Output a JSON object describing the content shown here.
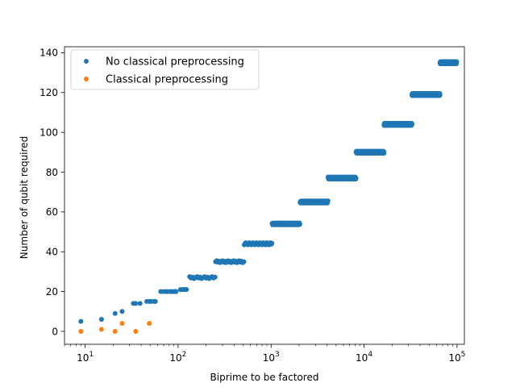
{
  "chart_data": {
    "type": "scatter",
    "title": "",
    "xlabel": "Biprime to be factored",
    "ylabel": "Number of qubit required",
    "xscale": "log",
    "xlim": [
      6,
      120000
    ],
    "ylim": [
      -6.5,
      143
    ],
    "x_ticks": [
      {
        "value": 10,
        "label": "10",
        "exp": "1"
      },
      {
        "value": 100,
        "label": "10",
        "exp": "2"
      },
      {
        "value": 1000,
        "label": "10",
        "exp": "3"
      },
      {
        "value": 10000,
        "label": "10",
        "exp": "4"
      },
      {
        "value": 100000,
        "label": "10",
        "exp": "5"
      }
    ],
    "y_ticks": [
      0,
      20,
      40,
      60,
      80,
      100,
      120,
      140
    ],
    "grid": false,
    "legend_position": "upper-left",
    "series": [
      {
        "name": "No classical preprocessing",
        "color": "#1f77b4",
        "clusters": [
          {
            "x": [
              9
            ],
            "y": 5
          },
          {
            "x": [
              15
            ],
            "y": 6
          },
          {
            "x": [
              21
            ],
            "y": 9
          },
          {
            "x": [
              25
            ],
            "y": 10
          },
          {
            "x": [
              33,
              35,
              39
            ],
            "y": 14
          },
          {
            "x": [
              46,
              49,
              51,
              55,
              57
            ],
            "y": 15
          },
          {
            "x": [
              65,
              69,
              74,
              77,
              82,
              85,
              87,
              91,
              93,
              94,
              95
            ],
            "y": 20
          },
          {
            "x": [
              106,
              111,
              115,
              119,
              121,
              122,
              123
            ],
            "y": 21
          },
          {
            "range": [
              133,
              250
            ],
            "n": 18,
            "y": 27
          },
          {
            "range": [
              253,
              510
            ],
            "n": 26,
            "y": 35
          },
          {
            "range": [
              515,
              1020
            ],
            "n": 40,
            "y": 44
          },
          {
            "range": [
              1025,
              2040
            ],
            "n": 60,
            "y": 54
          },
          {
            "range": [
              2050,
              4090
            ],
            "n": 90,
            "y": 65
          },
          {
            "range": [
              4100,
              8190
            ],
            "n": 120,
            "y": 77
          },
          {
            "range": [
              8200,
              16380
            ],
            "n": 160,
            "y": 90
          },
          {
            "range": [
              16400,
              32760
            ],
            "n": 200,
            "y": 104
          },
          {
            "range": [
              32800,
              65520
            ],
            "n": 240,
            "y": 119
          },
          {
            "range": [
              65600,
              99000
            ],
            "n": 180,
            "y": 135
          }
        ]
      },
      {
        "name": "Classical preprocessing",
        "color": "#ff7f0e",
        "points": [
          {
            "x": 9,
            "y": 0
          },
          {
            "x": 15,
            "y": 1
          },
          {
            "x": 21,
            "y": 0
          },
          {
            "x": 25,
            "y": 4
          },
          {
            "x": 35,
            "y": 0
          },
          {
            "x": 49,
            "y": 4
          }
        ]
      }
    ]
  }
}
